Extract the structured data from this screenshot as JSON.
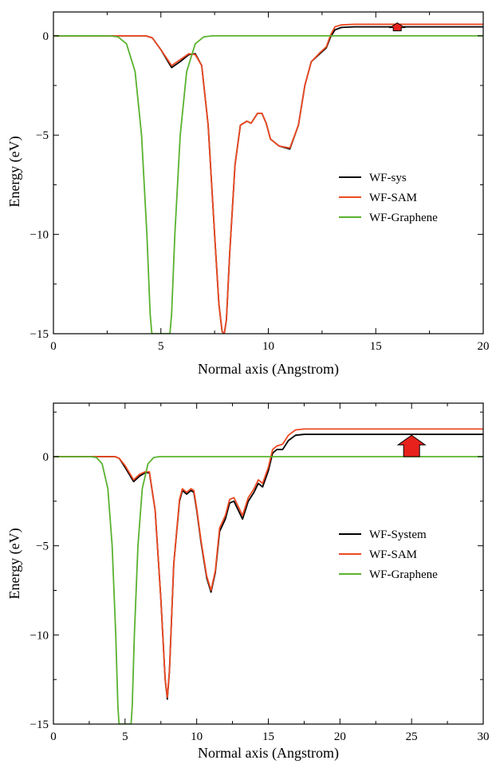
{
  "chart_data": [
    {
      "type": "line",
      "xlabel": "Normal axis (Angstrom)",
      "ylabel": "Energy (eV)",
      "xlim": [
        0,
        20
      ],
      "ylim": [
        -15,
        1.2
      ],
      "xticks": [
        0,
        5,
        10,
        15,
        20
      ],
      "yticks": [
        0,
        -5,
        -10,
        -15
      ],
      "ytick_labels": [
        "0",
        "−5",
        "−10",
        "−15"
      ],
      "grid": false,
      "legend_position": "right",
      "arrow": {
        "x": 16,
        "from": 0.25,
        "to": 0.45,
        "color": "#e8211c"
      },
      "series": [
        {
          "name": "WF-sys",
          "color": "#000000",
          "points": [
            [
              0,
              0
            ],
            [
              4.3,
              0
            ],
            [
              4.6,
              -0.1
            ],
            [
              5.0,
              -0.7
            ],
            [
              5.5,
              -1.6
            ],
            [
              5.9,
              -1.3
            ],
            [
              6.3,
              -0.95
            ],
            [
              6.6,
              -0.9
            ],
            [
              6.9,
              -1.5
            ],
            [
              7.2,
              -4.5
            ],
            [
              7.5,
              -10
            ],
            [
              7.7,
              -13.5
            ],
            [
              7.85,
              -14.9
            ],
            [
              7.95,
              -15
            ],
            [
              8.05,
              -14.3
            ],
            [
              8.2,
              -11
            ],
            [
              8.45,
              -6.5
            ],
            [
              8.7,
              -4.5
            ],
            [
              9.0,
              -4.3
            ],
            [
              9.2,
              -4.4
            ],
            [
              9.5,
              -3.9
            ],
            [
              9.7,
              -3.9
            ],
            [
              9.9,
              -4.4
            ],
            [
              10.1,
              -5.2
            ],
            [
              10.5,
              -5.55
            ],
            [
              11.0,
              -5.7
            ],
            [
              11.4,
              -4.5
            ],
            [
              11.7,
              -2.5
            ],
            [
              12.0,
              -1.3
            ],
            [
              12.4,
              -0.9
            ],
            [
              12.7,
              -0.6
            ],
            [
              12.9,
              -0.05
            ],
            [
              13.1,
              0.3
            ],
            [
              13.4,
              0.42
            ],
            [
              14,
              0.45
            ],
            [
              20,
              0.45
            ]
          ]
        },
        {
          "name": "WF-SAM",
          "color": "#ee4a22",
          "points": [
            [
              0,
              0
            ],
            [
              4.3,
              0
            ],
            [
              4.6,
              -0.1
            ],
            [
              5.0,
              -0.7
            ],
            [
              5.5,
              -1.5
            ],
            [
              5.9,
              -1.2
            ],
            [
              6.3,
              -0.9
            ],
            [
              6.6,
              -0.95
            ],
            [
              6.9,
              -1.5
            ],
            [
              7.2,
              -4.5
            ],
            [
              7.5,
              -10
            ],
            [
              7.7,
              -13.5
            ],
            [
              7.85,
              -14.9
            ],
            [
              7.95,
              -15
            ],
            [
              8.05,
              -14.3
            ],
            [
              8.2,
              -11
            ],
            [
              8.45,
              -6.5
            ],
            [
              8.7,
              -4.5
            ],
            [
              9.0,
              -4.3
            ],
            [
              9.2,
              -4.4
            ],
            [
              9.5,
              -3.9
            ],
            [
              9.7,
              -3.9
            ],
            [
              9.9,
              -4.4
            ],
            [
              10.1,
              -5.2
            ],
            [
              10.5,
              -5.55
            ],
            [
              11.0,
              -5.65
            ],
            [
              11.4,
              -4.5
            ],
            [
              11.7,
              -2.5
            ],
            [
              12.0,
              -1.3
            ],
            [
              12.4,
              -0.85
            ],
            [
              12.7,
              -0.55
            ],
            [
              12.9,
              0.05
            ],
            [
              13.1,
              0.45
            ],
            [
              13.4,
              0.55
            ],
            [
              14,
              0.58
            ],
            [
              20,
              0.58
            ]
          ]
        },
        {
          "name": "WF-Graphene",
          "color": "#59b22f",
          "points": [
            [
              0,
              0
            ],
            [
              2.6,
              0
            ],
            [
              3.0,
              -0.05
            ],
            [
              3.4,
              -0.4
            ],
            [
              3.8,
              -1.8
            ],
            [
              4.1,
              -5
            ],
            [
              4.35,
              -10
            ],
            [
              4.5,
              -14
            ],
            [
              4.58,
              -15
            ],
            [
              5.42,
              -15
            ],
            [
              5.5,
              -14
            ],
            [
              5.65,
              -10
            ],
            [
              5.9,
              -5
            ],
            [
              6.2,
              -1.8
            ],
            [
              6.6,
              -0.4
            ],
            [
              7.0,
              -0.05
            ],
            [
              7.4,
              0
            ],
            [
              20,
              0
            ]
          ]
        }
      ]
    },
    {
      "type": "line",
      "xlabel": "Normal axis (Angstrom)",
      "ylabel": "Energy (eV)",
      "xlim": [
        0,
        30
      ],
      "ylim": [
        -15,
        3
      ],
      "xticks": [
        0,
        5,
        10,
        15,
        20,
        25,
        30
      ],
      "yticks": [
        0,
        -5,
        -10,
        -15
      ],
      "ytick_labels": [
        "0",
        "−5",
        "−10",
        "−15"
      ],
      "grid": false,
      "legend_position": "right",
      "arrow": {
        "x": 25,
        "from": 0.0,
        "to": 1.2,
        "color": "#e8211c"
      },
      "series": [
        {
          "name": "WF-System",
          "color": "#000000",
          "points": [
            [
              0,
              0
            ],
            [
              4.3,
              0
            ],
            [
              4.6,
              -0.1
            ],
            [
              5.0,
              -0.6
            ],
            [
              5.6,
              -1.4
            ],
            [
              6.0,
              -1.1
            ],
            [
              6.4,
              -0.9
            ],
            [
              6.7,
              -0.9
            ],
            [
              7.1,
              -3
            ],
            [
              7.5,
              -8
            ],
            [
              7.8,
              -12.5
            ],
            [
              7.95,
              -13.6
            ],
            [
              8.1,
              -12
            ],
            [
              8.4,
              -6
            ],
            [
              8.8,
              -2.5
            ],
            [
              9.0,
              -1.9
            ],
            [
              9.3,
              -2.1
            ],
            [
              9.6,
              -1.9
            ],
            [
              9.8,
              -2.0
            ],
            [
              10.0,
              -3.0
            ],
            [
              10.3,
              -4.8
            ],
            [
              10.7,
              -6.8
            ],
            [
              11.0,
              -7.6
            ],
            [
              11.3,
              -6.5
            ],
            [
              11.6,
              -4.2
            ],
            [
              12.0,
              -3.5
            ],
            [
              12.3,
              -2.6
            ],
            [
              12.6,
              -2.5
            ],
            [
              12.9,
              -3.0
            ],
            [
              13.2,
              -3.5
            ],
            [
              13.6,
              -2.5
            ],
            [
              14.0,
              -2.0
            ],
            [
              14.3,
              -1.5
            ],
            [
              14.6,
              -1.7
            ],
            [
              15.0,
              -0.8
            ],
            [
              15.3,
              0.2
            ],
            [
              15.6,
              0.4
            ],
            [
              16.0,
              0.4
            ],
            [
              16.4,
              0.9
            ],
            [
              16.9,
              1.2
            ],
            [
              17.5,
              1.25
            ],
            [
              30,
              1.25
            ]
          ]
        },
        {
          "name": "WF-SAM",
          "color": "#ee4a22",
          "points": [
            [
              0,
              0
            ],
            [
              4.3,
              0
            ],
            [
              4.6,
              -0.1
            ],
            [
              5.0,
              -0.5
            ],
            [
              5.6,
              -1.3
            ],
            [
              6.0,
              -1.0
            ],
            [
              6.4,
              -0.85
            ],
            [
              6.7,
              -0.85
            ],
            [
              7.1,
              -3
            ],
            [
              7.5,
              -8
            ],
            [
              7.8,
              -12.5
            ],
            [
              7.95,
              -13.5
            ],
            [
              8.1,
              -12
            ],
            [
              8.4,
              -6
            ],
            [
              8.8,
              -2.4
            ],
            [
              9.0,
              -1.8
            ],
            [
              9.3,
              -2.0
            ],
            [
              9.6,
              -1.8
            ],
            [
              9.8,
              -1.9
            ],
            [
              10.0,
              -2.9
            ],
            [
              10.3,
              -4.7
            ],
            [
              10.7,
              -6.7
            ],
            [
              11.0,
              -7.5
            ],
            [
              11.3,
              -6.4
            ],
            [
              11.6,
              -4.0
            ],
            [
              12.0,
              -3.3
            ],
            [
              12.3,
              -2.4
            ],
            [
              12.6,
              -2.3
            ],
            [
              12.9,
              -2.8
            ],
            [
              13.2,
              -3.3
            ],
            [
              13.6,
              -2.3
            ],
            [
              14.0,
              -1.8
            ],
            [
              14.3,
              -1.3
            ],
            [
              14.6,
              -1.5
            ],
            [
              15.0,
              -0.6
            ],
            [
              15.3,
              0.4
            ],
            [
              15.6,
              0.6
            ],
            [
              16.0,
              0.7
            ],
            [
              16.4,
              1.2
            ],
            [
              16.9,
              1.5
            ],
            [
              17.5,
              1.55
            ],
            [
              30,
              1.55
            ]
          ]
        },
        {
          "name": "WF-Graphene",
          "color": "#59b22f",
          "points": [
            [
              0,
              0
            ],
            [
              2.6,
              0
            ],
            [
              3.0,
              -0.05
            ],
            [
              3.4,
              -0.4
            ],
            [
              3.8,
              -1.8
            ],
            [
              4.1,
              -5
            ],
            [
              4.35,
              -10
            ],
            [
              4.5,
              -14
            ],
            [
              4.58,
              -15
            ],
            [
              5.42,
              -15
            ],
            [
              5.5,
              -14
            ],
            [
              5.65,
              -10
            ],
            [
              5.9,
              -5
            ],
            [
              6.2,
              -1.8
            ],
            [
              6.6,
              -0.4
            ],
            [
              7.0,
              -0.05
            ],
            [
              7.4,
              0
            ],
            [
              30,
              0
            ]
          ]
        }
      ]
    }
  ]
}
